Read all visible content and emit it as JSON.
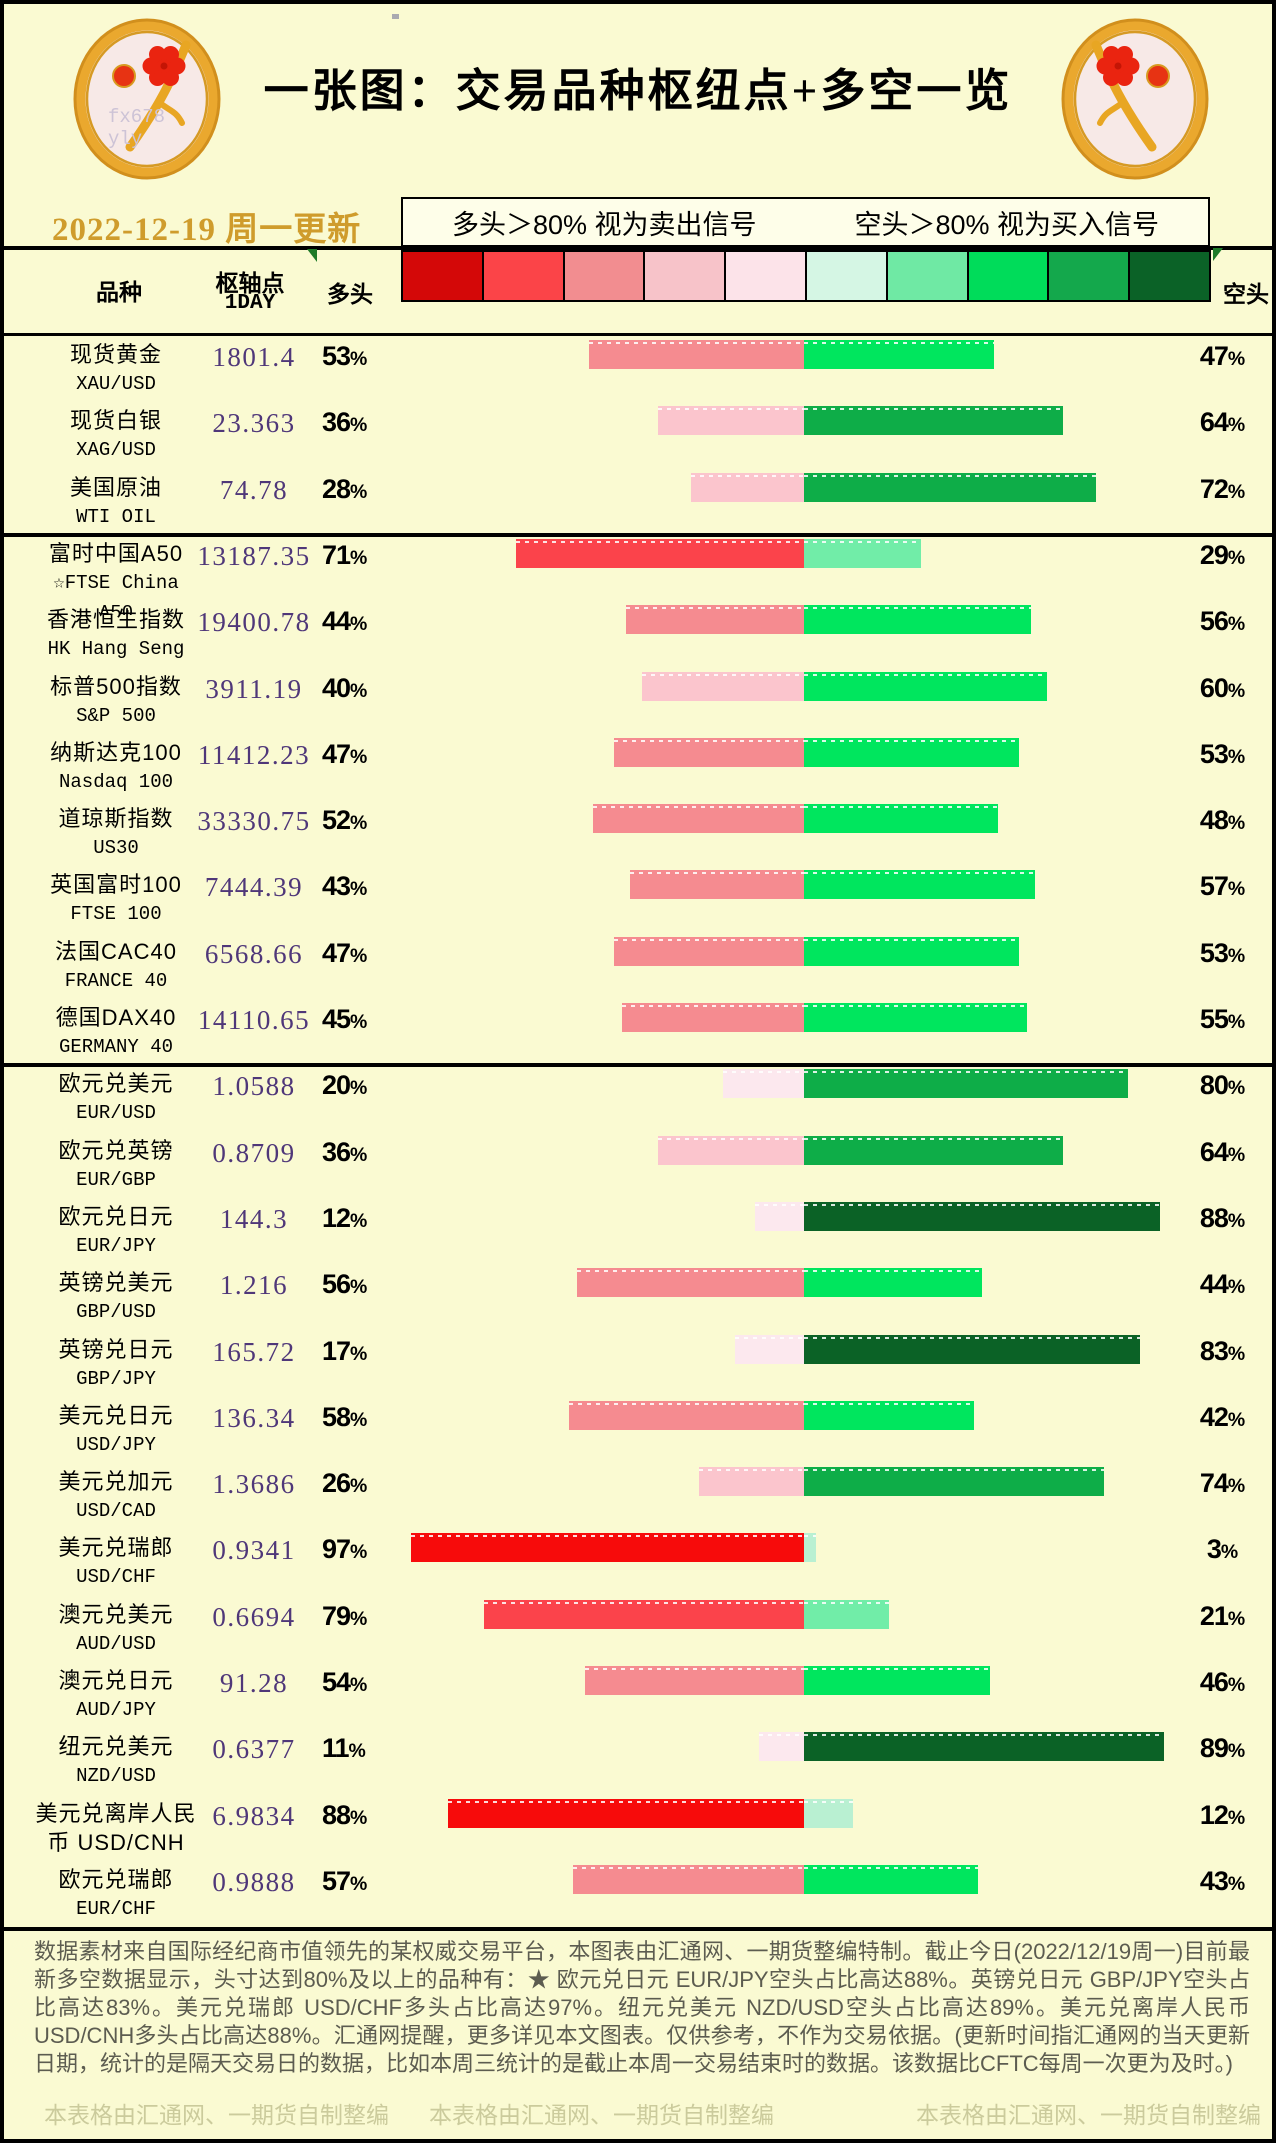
{
  "header": {
    "title": "一张图：交易品种枢纽点+多空一览",
    "date_label": "2022-12-19 周一更新",
    "logo_watermark": "fx678 yly"
  },
  "legend": {
    "long_rule": "多头＞80% 视为卖出信号",
    "short_rule": "空头＞80% 视为买入信号"
  },
  "table_headers": {
    "instrument": "品种",
    "pivot_line1": "枢轴点",
    "pivot_line2": "1DAY",
    "long": "多头",
    "short": "空头"
  },
  "colors": {
    "background": "#FAFAD2",
    "date_gold": "#cf9c2c",
    "pivot_purple": "#4f3779",
    "scale": [
      "#d40808",
      "#fb4448",
      "#f28d90",
      "#f7c3c9",
      "#fce3e9",
      "#d5f6e4",
      "#6fe9a4",
      "#00dc5a",
      "#14a84c",
      "#0b6227"
    ],
    "long_buckets": [
      "#fce8ee",
      "#fbc5cd",
      "#f58b90",
      "#fb434b",
      "#f70b0b"
    ],
    "short_buckets": [
      "#b9f0d2",
      "#71eda8",
      "#00e65e",
      "#0ead48",
      "#0b6226"
    ]
  },
  "chart_data": {
    "type": "bar",
    "orientation": "horizontal-diverging",
    "title": "一张图：交易品种枢纽点+多空一览",
    "xlim": [
      -100,
      100
    ],
    "center_note": "red bar = 多头% (left of center), green bar = 空头% (right of center)",
    "group_breaks_after": [
      3,
      11
    ],
    "categories": [
      "XAU/USD",
      "XAG/USD",
      "WTI OIL",
      "FTSE China A50",
      "HK Hang Seng",
      "S&P 500",
      "Nasdaq 100",
      "US30",
      "FTSE 100",
      "FRANCE 40",
      "GERMANY 40",
      "EUR/USD",
      "EUR/GBP",
      "EUR/JPY",
      "GBP/USD",
      "GBP/JPY",
      "USD/JPY",
      "USD/CAD",
      "USD/CHF",
      "AUD/USD",
      "AUD/JPY",
      "NZD/USD",
      "USD/CNH",
      "EUR/CHF"
    ],
    "series": [
      {
        "name": "多头",
        "values": [
          53,
          36,
          28,
          71,
          44,
          40,
          47,
          52,
          43,
          47,
          45,
          20,
          36,
          12,
          56,
          17,
          58,
          26,
          97,
          79,
          54,
          11,
          88,
          57
        ]
      },
      {
        "name": "空头",
        "values": [
          47,
          64,
          72,
          29,
          56,
          60,
          53,
          48,
          57,
          53,
          55,
          80,
          64,
          88,
          44,
          83,
          42,
          74,
          3,
          21,
          46,
          89,
          12,
          43
        ]
      }
    ],
    "rows": [
      {
        "lines": [
          "现货黄金",
          "XAU/USD"
        ],
        "pivot": "1801.4",
        "long": 53,
        "short": 47
      },
      {
        "lines": [
          "现货白银",
          "XAG/USD"
        ],
        "pivot": "23.363",
        "long": 36,
        "short": 64
      },
      {
        "lines": [
          "美国原油",
          "WTI OIL"
        ],
        "pivot": "74.78",
        "long": 28,
        "short": 72
      },
      {
        "lines": [
          "富时中国A50",
          "☆FTSE China",
          "A50"
        ],
        "pivot": "13187.35",
        "long": 71,
        "short": 29
      },
      {
        "lines": [
          "香港恒生指数",
          "HK Hang Seng"
        ],
        "pivot": "19400.78",
        "long": 44,
        "short": 56
      },
      {
        "lines": [
          "标普500指数",
          "S&P 500"
        ],
        "pivot": "3911.19",
        "long": 40,
        "short": 60
      },
      {
        "lines": [
          "纳斯达克100",
          "Nasdaq 100"
        ],
        "pivot": "11412.23",
        "long": 47,
        "short": 53
      },
      {
        "lines": [
          "道琼斯指数",
          "US30"
        ],
        "pivot": "33330.75",
        "long": 52,
        "short": 48
      },
      {
        "lines": [
          "英国富时100",
          "FTSE 100"
        ],
        "pivot": "7444.39",
        "long": 43,
        "short": 57
      },
      {
        "lines": [
          "法国CAC40",
          "FRANCE 40"
        ],
        "pivot": "6568.66",
        "long": 47,
        "short": 53
      },
      {
        "lines": [
          "德国DAX40",
          "GERMANY 40"
        ],
        "pivot": "14110.65",
        "long": 45,
        "short": 55
      },
      {
        "lines": [
          "欧元兑美元",
          "EUR/USD"
        ],
        "pivot": "1.0588",
        "long": 20,
        "short": 80
      },
      {
        "lines": [
          "欧元兑英镑",
          "EUR/GBP"
        ],
        "pivot": "0.8709",
        "long": 36,
        "short": 64
      },
      {
        "lines": [
          "欧元兑日元",
          "EUR/JPY"
        ],
        "pivot": "144.3",
        "long": 12,
        "short": 88
      },
      {
        "lines": [
          "英镑兑美元",
          "GBP/USD"
        ],
        "pivot": "1.216",
        "long": 56,
        "short": 44
      },
      {
        "lines": [
          "英镑兑日元",
          "GBP/JPY"
        ],
        "pivot": "165.72",
        "long": 17,
        "short": 83
      },
      {
        "lines": [
          "美元兑日元",
          "USD/JPY"
        ],
        "pivot": "136.34",
        "long": 58,
        "short": 42
      },
      {
        "lines": [
          "美元兑加元",
          "USD/CAD"
        ],
        "pivot": "1.3686",
        "long": 26,
        "short": 74
      },
      {
        "lines": [
          "美元兑瑞郎",
          "USD/CHF"
        ],
        "pivot": "0.9341",
        "long": 97,
        "short": 3
      },
      {
        "lines": [
          "澳元兑美元",
          "AUD/USD"
        ],
        "pivot": "0.6694",
        "long": 79,
        "short": 21
      },
      {
        "lines": [
          "澳元兑日元",
          "AUD/JPY"
        ],
        "pivot": "91.28",
        "long": 54,
        "short": 46
      },
      {
        "lines": [
          "纽元兑美元",
          "NZD/USD"
        ],
        "pivot": "0.6377",
        "long": 11,
        "short": 89
      },
      {
        "lines": [
          "美元兑离岸人民",
          "币  USD/CNH"
        ],
        "pivot": "6.9834",
        "long": 88,
        "short": 12
      },
      {
        "lines": [
          "欧元兑瑞郎",
          "EUR/CHF"
        ],
        "pivot": "0.9888",
        "long": 57,
        "short": 43
      }
    ]
  },
  "footer": {
    "paragraph": "数据素材来自国际经纪商市值领先的某权威交易平台，本图表由汇通网、一期货整编特制。截止今日(2022/12/19周一)目前最新多空数据显示，头寸达到80%及以上的品种有：★ 欧元兑日元 EUR/JPY空头占比高达88%。英镑兑日元 GBP/JPY空头占比高达83%。美元兑瑞郎 USD/CHF多头占比高达97%。纽元兑美元 NZD/USD空头占比高达89%。美元兑离岸人民币 USD/CNH多头占比高达88%。汇通网提醒，更多详见本文图表。仅供参考，不作为交易依据。(更新时间指汇通网的当天更新日期，统计的是隔天交易日的数据，比如本周三统计的是截止本周一交易结束时的数据。该数据比CFTC每周一次更为及时。)",
    "watermarks": [
      "本表格由汇通网、一期货自制整编",
      "本表格由汇通网、一期货自制整编",
      "本表格由汇通网、一期货自制整编"
    ]
  }
}
